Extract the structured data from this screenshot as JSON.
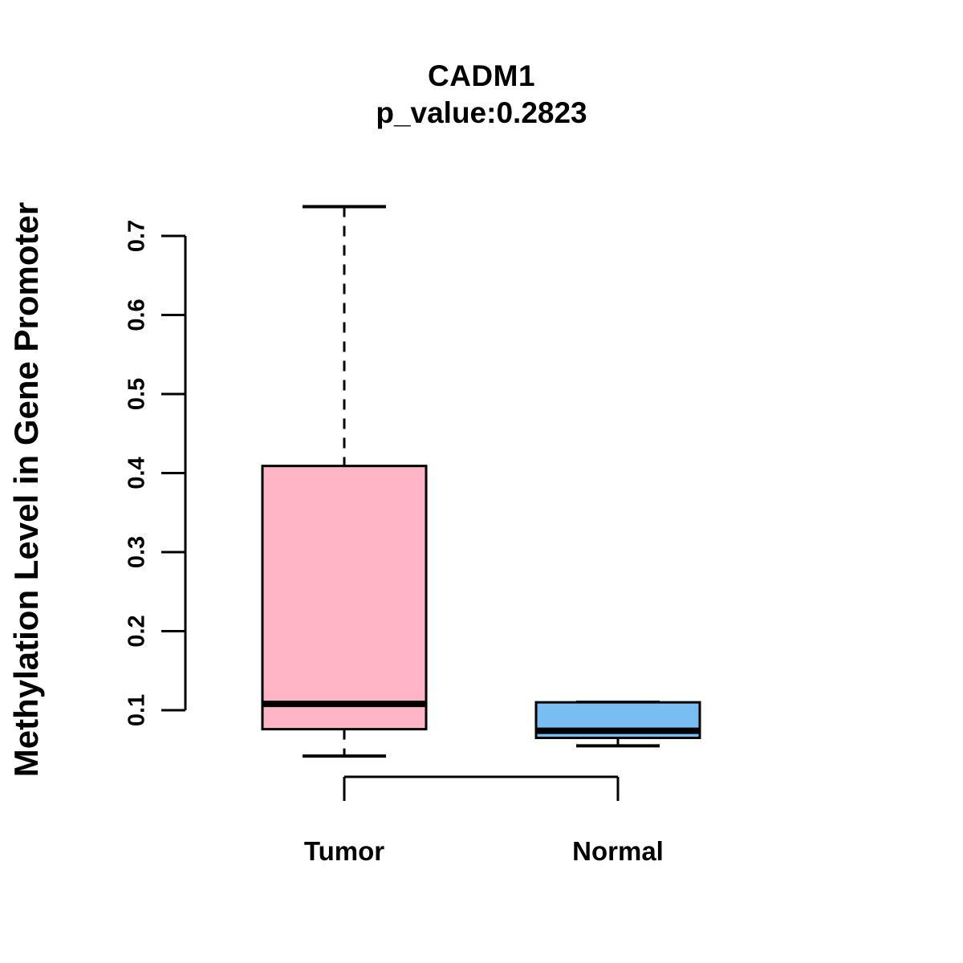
{
  "page": {
    "background": "#ffffff",
    "text_color": "#000000"
  },
  "chart_data": {
    "type": "boxplot",
    "title": "CADM1",
    "subtitle": "p_value:0.2823",
    "p_value": 0.2823,
    "ylabel": "Methylation Level in Gene Promoter",
    "xlabel": "",
    "categories": [
      "Tumor",
      "Normal"
    ],
    "y_axis": {
      "ticks": [
        0.1,
        0.2,
        0.3,
        0.4,
        0.5,
        0.6,
        0.7
      ],
      "tick_format_decimals": 1,
      "range_shown": [
        0.04,
        0.74
      ],
      "grid": false
    },
    "groups": [
      {
        "name": "Tumor",
        "fill": "#FFB5C5",
        "min": 0.042,
        "q1": 0.076,
        "median": 0.108,
        "q3": 0.409,
        "max": 0.737
      },
      {
        "name": "Normal",
        "fill": "#79BEF2",
        "min": 0.055,
        "q1": 0.065,
        "median": 0.074,
        "q3": 0.11,
        "max": 0.11
      }
    ],
    "styles": {
      "box_border_color": "#000000",
      "median_color": "#000000",
      "whisker_color": "#000000",
      "axis_color": "#000000",
      "whisker_style": "dashed"
    },
    "legend": false
  }
}
